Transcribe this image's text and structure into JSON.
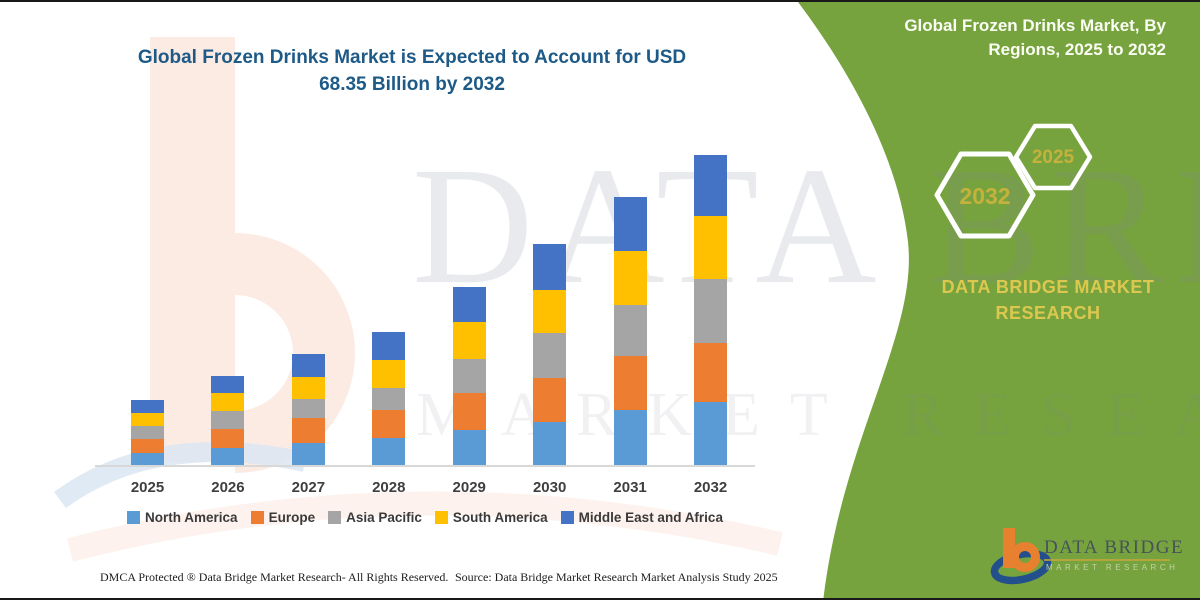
{
  "page": {
    "title_line1": "Global Frozen Drinks Market is Expected to Account for USD",
    "title_line2": "68.35 Billion by 2032"
  },
  "side_panel": {
    "title_line1": "Global Frozen Drinks Market, By",
    "title_line2": "Regions, 2025 to 2032",
    "hexagons": [
      {
        "label": "2032"
      },
      {
        "label": "2025"
      }
    ],
    "caption_line1": "DATA BRIDGE MARKET",
    "caption_line2": "RESEARCH"
  },
  "watermark": {
    "text_main": "DATA BRIDGE",
    "text_sub": "MARKET RESEARCH"
  },
  "logo": {
    "name": "DATA BRIDGE",
    "subtext": "MARKET RESEARCH"
  },
  "footer": {
    "left": "DMCA Protected ® Data Bridge Market Research-  All Rights Reserved.",
    "right": "Source: Data Bridge Market Research  Market Analysis Study 2025"
  },
  "colors": {
    "panel-green": "#77A33F",
    "title-blue": "#1E5A87",
    "hex-gold": "#C4B23C",
    "caption-gold": "#DCC84F",
    "axis-gray": "#D8D8D8"
  },
  "chart_data": {
    "type": "bar",
    "stacked": true,
    "title": "Global Frozen Drinks Market, By Regions, 2025 to 2032",
    "units": "USD Billion",
    "values_estimated": true,
    "labeled_total_2032": 68.35,
    "xlabel": "",
    "ylabel": "",
    "y_axis_shown": false,
    "grid": false,
    "legend_position": "bottom",
    "categories": [
      "2025",
      "2026",
      "2027",
      "2028",
      "2029",
      "2030",
      "2031",
      "2032"
    ],
    "series": [
      {
        "name": "North America",
        "color": "#5B9BD5",
        "values": [
          2.7,
          3.7,
          4.8,
          5.9,
          7.7,
          9.5,
          12.1,
          13.95
        ]
      },
      {
        "name": "Europe",
        "color": "#ED7D31",
        "values": [
          3.1,
          4.2,
          5.5,
          6.2,
          8.1,
          9.7,
          11.9,
          13.0
        ]
      },
      {
        "name": "Asia Pacific",
        "color": "#A5A5A5",
        "values": [
          2.9,
          3.9,
          4.2,
          4.8,
          7.5,
          9.9,
          11.1,
          14.1
        ]
      },
      {
        "name": "South America",
        "color": "#FFC000",
        "values": [
          2.9,
          4.0,
          4.8,
          6.2,
          8.2,
          9.5,
          11.9,
          13.8
        ]
      },
      {
        "name": "Middle East and Africa",
        "color": "#4472C4",
        "values": [
          2.9,
          3.7,
          5.1,
          6.2,
          7.7,
          10.2,
          11.9,
          13.5
        ]
      }
    ],
    "stack_totals": [
      14.5,
      19.5,
      24.4,
      29.3,
      39.2,
      48.8,
      58.9,
      68.35
    ]
  }
}
